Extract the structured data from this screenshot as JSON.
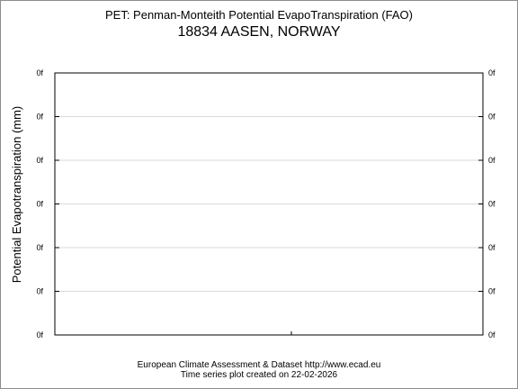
{
  "chart_data": {
    "type": "line",
    "title": "PET: Penman-Monteith Potential EvapoTranspiration (FAO)",
    "subtitle": "18834 AASEN, NORWAY",
    "ylabel": "Potential Evapotranspiration (mm)",
    "xlabel": "",
    "y_tick_labels": [
      "0f",
      "0f",
      "0f",
      "0f",
      "0f",
      "0f",
      "0f"
    ],
    "y_tick_labels_right": [
      "0f",
      "0f",
      "0f",
      "0f",
      "0f",
      "0f",
      "0f"
    ],
    "series": [],
    "grid": true,
    "legend": "none"
  },
  "footer": {
    "line1": "European Climate Assessment & Dataset  http://www.ecad.eu",
    "line2": "Time series plot created on 22-02-2026"
  }
}
